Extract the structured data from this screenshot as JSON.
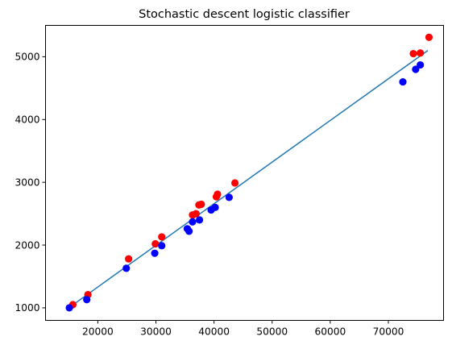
{
  "chart_data": {
    "type": "scatter",
    "title": "Stochastic descent logistic classifier",
    "xlabel": "",
    "ylabel": "",
    "xlim": [
      11000,
      79500
    ],
    "ylim": [
      800,
      5500
    ],
    "x_ticks": [
      20000,
      30000,
      40000,
      50000,
      60000,
      70000
    ],
    "x_tick_labels": [
      "20000",
      "30000",
      "40000",
      "50000",
      "60000",
      "70000"
    ],
    "y_ticks": [
      1000,
      2000,
      3000,
      4000,
      5000
    ],
    "y_tick_labels": [
      "1000",
      "2000",
      "3000",
      "4000",
      "5000"
    ],
    "grid": false,
    "legend": "none",
    "series": [
      {
        "kind": "scatter",
        "color": "#ff0000",
        "points": [
          [
            15700,
            1050
          ],
          [
            18300,
            1210
          ],
          [
            25300,
            1780
          ],
          [
            29900,
            2020
          ],
          [
            31000,
            2130
          ],
          [
            36300,
            2480
          ],
          [
            36900,
            2500
          ],
          [
            37400,
            2640
          ],
          [
            37800,
            2650
          ],
          [
            40400,
            2770
          ],
          [
            40600,
            2810
          ],
          [
            43600,
            2990
          ],
          [
            74300,
            5050
          ],
          [
            75500,
            5060
          ],
          [
            77000,
            5310
          ]
        ]
      },
      {
        "kind": "scatter",
        "color": "#0000ff",
        "points": [
          [
            15100,
            1000
          ],
          [
            18100,
            1130
          ],
          [
            24900,
            1630
          ],
          [
            29800,
            1870
          ],
          [
            31000,
            1990
          ],
          [
            35400,
            2260
          ],
          [
            35700,
            2220
          ],
          [
            36300,
            2370
          ],
          [
            37500,
            2400
          ],
          [
            39500,
            2560
          ],
          [
            40200,
            2600
          ],
          [
            42600,
            2760
          ],
          [
            72500,
            4600
          ],
          [
            74700,
            4800
          ],
          [
            75500,
            4870
          ]
        ]
      },
      {
        "kind": "line",
        "color": "#1f77b4",
        "points": [
          [
            15000,
            1000
          ],
          [
            76800,
            5100
          ]
        ]
      }
    ]
  }
}
